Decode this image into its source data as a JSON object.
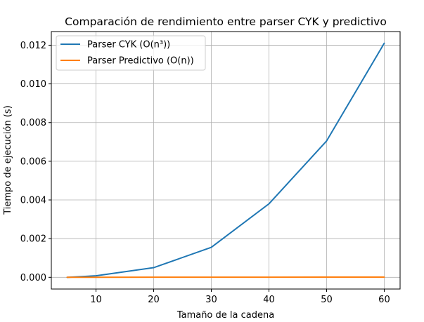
{
  "chart_data": {
    "type": "line",
    "title": "Comparación de rendimiento entre parser CYK y predictivo",
    "xlabel": "Tamaño de la cadena",
    "ylabel": "Tiempo de ejecución (s)",
    "xlim": [
      2.25,
      62.75
    ],
    "ylim": [
      -0.000605,
      0.012705
    ],
    "xticks": [
      10,
      20,
      30,
      40,
      50,
      60
    ],
    "xtick_labels": [
      "10",
      "20",
      "30",
      "40",
      "50",
      "60"
    ],
    "yticks": [
      0.0,
      0.002,
      0.004,
      0.006,
      0.008,
      0.01,
      0.012
    ],
    "ytick_labels": [
      "0.000",
      "0.002",
      "0.004",
      "0.006",
      "0.008",
      "0.010",
      "0.012"
    ],
    "grid": true,
    "legend_position": "upper-left",
    "series": [
      {
        "name": "Parser CYK (O(n³))",
        "color": "#1f77b4",
        "x": [
          5,
          10,
          20,
          30,
          40,
          50,
          60
        ],
        "y": [
          0.0,
          8e-05,
          0.0005,
          0.00155,
          0.0038,
          0.00705,
          0.0121
        ]
      },
      {
        "name": "Parser Predictivo (O(n))",
        "color": "#ff7f0e",
        "x": [
          5,
          10,
          20,
          30,
          40,
          50,
          60
        ],
        "y": [
          2e-06,
          3e-06,
          5e-06,
          7e-06,
          9e-06,
          1.1e-05,
          1.3e-05
        ]
      }
    ]
  }
}
